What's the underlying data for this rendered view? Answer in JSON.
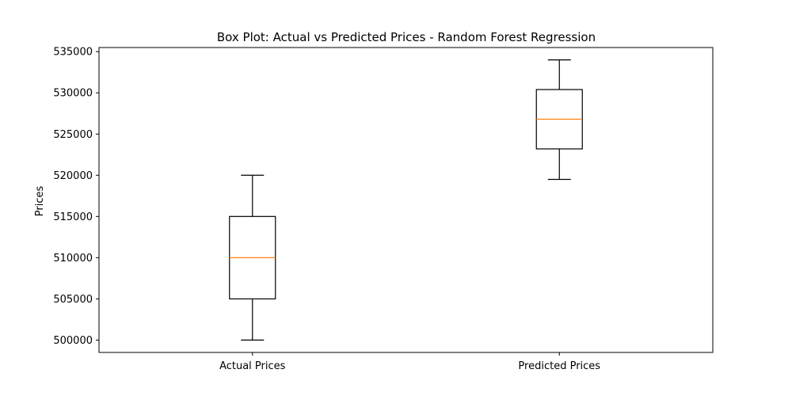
{
  "chart_data": {
    "type": "box",
    "title": "Box Plot: Actual vs Predicted Prices - Random Forest Regression",
    "xlabel": "",
    "ylabel": "Prices",
    "ylim": [
      498500,
      535500
    ],
    "yticks": [
      500000,
      505000,
      510000,
      515000,
      520000,
      525000,
      530000,
      535000
    ],
    "ytick_labels": [
      "500000",
      "505000",
      "510000",
      "515000",
      "520000",
      "525000",
      "530000",
      "535000"
    ],
    "grid": false,
    "colors": {
      "box": "#000000",
      "median": "#ff7f0e"
    },
    "categories": [
      "Actual Prices",
      "Predicted Prices"
    ],
    "boxes": [
      {
        "label": "Actual Prices",
        "whisker_low": 500000,
        "q1": 505000,
        "median": 510000,
        "q3": 515000,
        "whisker_high": 520000
      },
      {
        "label": "Predicted Prices",
        "whisker_low": 519500,
        "q1": 523200,
        "median": 526800,
        "q3": 530400,
        "whisker_high": 534000
      }
    ]
  }
}
